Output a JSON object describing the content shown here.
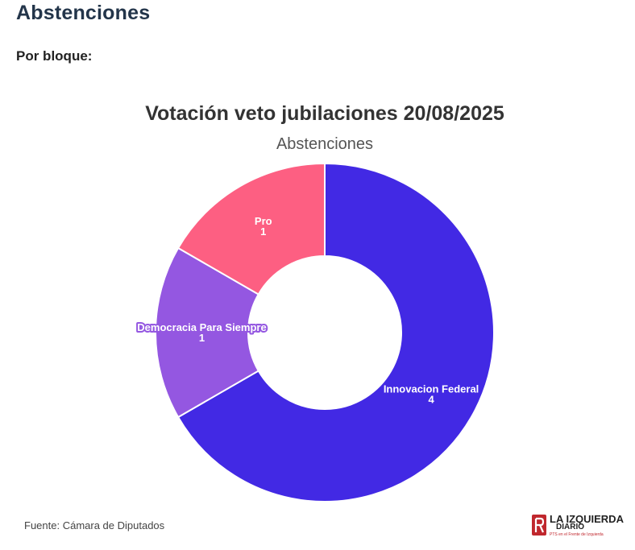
{
  "header": {
    "heading": "Abstenciones",
    "section_label": "Por bloque:"
  },
  "chart_data": {
    "type": "pie",
    "title": "Votación veto jubilaciones 20/08/2025",
    "subtitle": "Abstenciones",
    "donut": true,
    "categories": [
      "Innovacion Federal",
      "Democracia Para Siempre",
      "Pro"
    ],
    "values": [
      4,
      1,
      1
    ],
    "colors": [
      "#4229e4",
      "#9457e1",
      "#fd5f82"
    ]
  },
  "footer": {
    "source": "Fuente: Cámara de Diputados",
    "logo": {
      "line1": "LA IZQUIERDA",
      "line2": "DIARIO",
      "tagline": "PTS en el Frente de Izquierda"
    }
  }
}
